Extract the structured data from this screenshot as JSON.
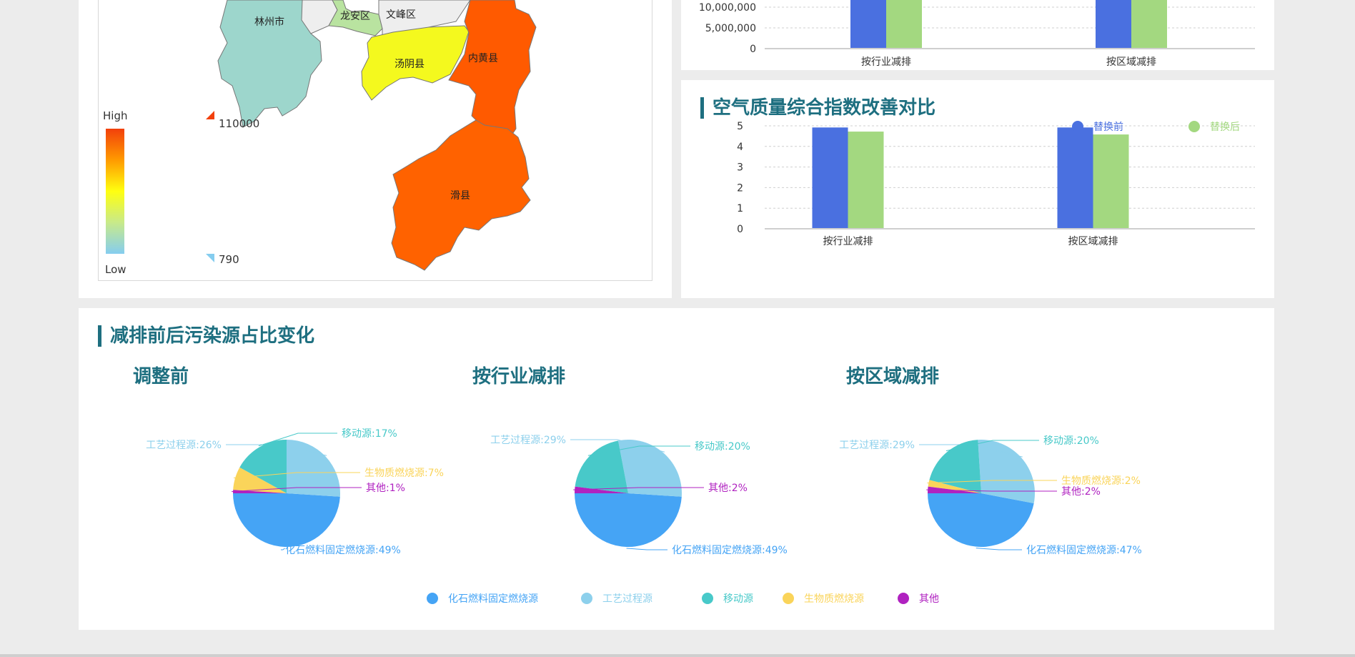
{
  "map": {
    "legend_high": "High",
    "legend_low": "Low",
    "legend_max": "110000",
    "legend_min": "790",
    "regions": [
      {
        "name": "林州市",
        "color": "#9dd6cc"
      },
      {
        "name": "龙安区",
        "color": "#b9e3a0"
      },
      {
        "name": "文峰区",
        "color": "#eeeeee"
      },
      {
        "name": "汤阴县",
        "color": "#f4f91e"
      },
      {
        "name": "内黄县",
        "color": "#ff5a00"
      },
      {
        "name": "滑县",
        "color": "#ff6200"
      }
    ]
  },
  "bar_top": {
    "chart_data": {
      "type": "bar",
      "categories": [
        "按行业减排",
        "按区域减排"
      ],
      "y_ticks": [
        "10,000,000",
        "5,000,000",
        "0"
      ],
      "series_colors": [
        "#4a70e0",
        "#a3d880"
      ]
    }
  },
  "bar_aqi": {
    "title": "空气质量综合指数改善对比",
    "chart_data": {
      "type": "bar",
      "categories": [
        "按行业减排",
        "按区域减排"
      ],
      "series": [
        {
          "name": "替换前",
          "values": [
            4.92,
            4.92
          ],
          "color": "#4a70e0"
        },
        {
          "name": "替换后",
          "values": [
            4.72,
            4.58
          ],
          "color": "#a3d880"
        }
      ],
      "ylim": [
        0,
        5
      ],
      "y_ticks": [
        "5",
        "4",
        "3",
        "2",
        "1",
        "0"
      ],
      "grid": true,
      "legend": "top-right"
    }
  },
  "pies": {
    "title": "减排前后污染源占比变化",
    "legend": [
      {
        "name": "化石燃料固定燃烧源",
        "color": "#45a4f5"
      },
      {
        "name": "工艺过程源",
        "color": "#8dd0ec"
      },
      {
        "name": "移动源",
        "color": "#48c9c9"
      },
      {
        "name": "生物质燃烧源",
        "color": "#fad45a"
      },
      {
        "name": "其他",
        "color": "#b022c0"
      }
    ],
    "chart_data": [
      {
        "type": "pie",
        "title": "调整前",
        "slices": [
          {
            "label": "化石燃料固定燃烧源",
            "value": 49,
            "text": "化石燃料固定燃烧源:49%"
          },
          {
            "label": "工艺过程源",
            "value": 26,
            "text": "工艺过程源:26%"
          },
          {
            "label": "移动源",
            "value": 17,
            "text": "移动源:17%"
          },
          {
            "label": "生物质燃烧源",
            "value": 7,
            "text": "生物质燃烧源:7%"
          },
          {
            "label": "其他",
            "value": 1,
            "text": "其他:1%"
          }
        ]
      },
      {
        "type": "pie",
        "title": "按行业减排",
        "slices": [
          {
            "label": "化石燃料固定燃烧源",
            "value": 49,
            "text": "化石燃料固定燃烧源:49%"
          },
          {
            "label": "工艺过程源",
            "value": 29,
            "text": "工艺过程源:29%"
          },
          {
            "label": "移动源",
            "value": 20,
            "text": "移动源:20%"
          },
          {
            "label": "生物质燃烧源",
            "value": 0
          },
          {
            "label": "其他",
            "value": 2,
            "text": "其他:2%"
          }
        ]
      },
      {
        "type": "pie",
        "title": "按区域减排",
        "slices": [
          {
            "label": "化石燃料固定燃烧源",
            "value": 47,
            "text": "化石燃料固定燃烧源:47%"
          },
          {
            "label": "工艺过程源",
            "value": 29,
            "text": "工艺过程源:29%"
          },
          {
            "label": "移动源",
            "value": 20,
            "text": "移动源:20%"
          },
          {
            "label": "生物质燃烧源",
            "value": 2,
            "text": "生物质燃烧源:2%"
          },
          {
            "label": "其他",
            "value": 2,
            "text": "其他:2%"
          }
        ]
      }
    ]
  }
}
